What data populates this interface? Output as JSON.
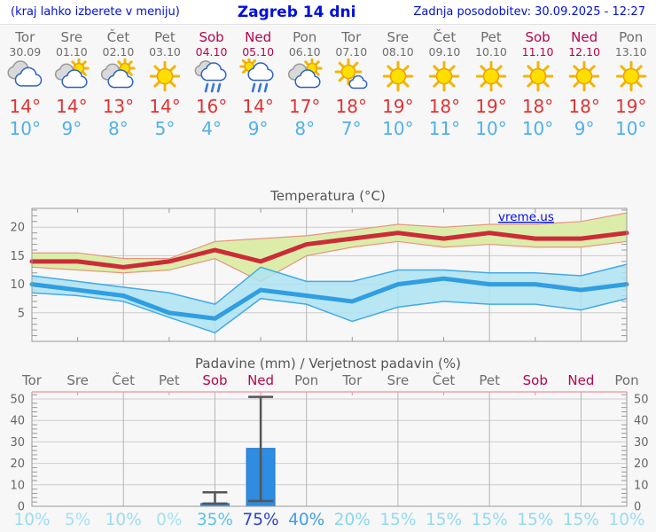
{
  "header": {
    "note": "(kraj lahko izberete v meniju)",
    "title": "Zagreb 14 dni",
    "updated": "Zadnja posodobitev: 30.09.2025 - 12:27"
  },
  "watermark": "vreme.us",
  "days": [
    {
      "name": "Tor",
      "date": "30.09",
      "weekend": false,
      "icon": "cloudy",
      "tmax_label": "14°",
      "tmin_label": "10°",
      "pop_label": "10%",
      "pop_color": "#9bdcf2"
    },
    {
      "name": "Sre",
      "date": "01.10",
      "weekend": false,
      "icon": "partly-sunny",
      "tmax_label": "14°",
      "tmin_label": "9°",
      "pop_label": "5%",
      "pop_color": "#a5e0f4"
    },
    {
      "name": "Čet",
      "date": "02.10",
      "weekend": false,
      "icon": "partly-sunny",
      "tmax_label": "13°",
      "tmin_label": "8°",
      "pop_label": "10%",
      "pop_color": "#9bdcf2"
    },
    {
      "name": "Pet",
      "date": "03.10",
      "weekend": false,
      "icon": "sunny",
      "tmax_label": "14°",
      "tmin_label": "5°",
      "pop_label": "0%",
      "pop_color": "#a5e0f4"
    },
    {
      "name": "Sob",
      "date": "04.10",
      "weekend": true,
      "icon": "rain",
      "tmax_label": "16°",
      "tmin_label": "4°",
      "pop_label": "35%",
      "pop_color": "#5ac2ec"
    },
    {
      "name": "Ned",
      "date": "05.10",
      "weekend": true,
      "icon": "sun-rain",
      "tmax_label": "14°",
      "tmin_label": "9°",
      "pop_label": "75%",
      "pop_color": "#2a44c4"
    },
    {
      "name": "Pon",
      "date": "06.10",
      "weekend": false,
      "icon": "partly-sunny",
      "tmax_label": "17°",
      "tmin_label": "8°",
      "pop_label": "40%",
      "pop_color": "#3f9ee6"
    },
    {
      "name": "Tor",
      "date": "07.10",
      "weekend": false,
      "icon": "mostly-sunny",
      "tmax_label": "18°",
      "tmin_label": "7°",
      "pop_label": "20%",
      "pop_color": "#86d7f0"
    },
    {
      "name": "Sre",
      "date": "08.10",
      "weekend": false,
      "icon": "sunny",
      "tmax_label": "19°",
      "tmin_label": "10°",
      "pop_label": "15%",
      "pop_color": "#92daf1"
    },
    {
      "name": "Čet",
      "date": "09.10",
      "weekend": false,
      "icon": "sunny",
      "tmax_label": "18°",
      "tmin_label": "11°",
      "pop_label": "15%",
      "pop_color": "#92daf1"
    },
    {
      "name": "Pet",
      "date": "10.10",
      "weekend": false,
      "icon": "sunny",
      "tmax_label": "19°",
      "tmin_label": "10°",
      "pop_label": "15%",
      "pop_color": "#92daf1"
    },
    {
      "name": "Sob",
      "date": "11.10",
      "weekend": true,
      "icon": "sunny",
      "tmax_label": "18°",
      "tmin_label": "10°",
      "pop_label": "15%",
      "pop_color": "#92daf1"
    },
    {
      "name": "Ned",
      "date": "12.10",
      "weekend": true,
      "icon": "sunny",
      "tmax_label": "18°",
      "tmin_label": "9°",
      "pop_label": "15%",
      "pop_color": "#92daf1"
    },
    {
      "name": "Pon",
      "date": "13.10",
      "weekend": false,
      "icon": "sunny",
      "tmax_label": "19°",
      "tmin_label": "10°",
      "pop_label": "10%",
      "pop_color": "#9bdcf2"
    }
  ],
  "chart_data": [
    {
      "type": "line",
      "title": "Temperatura (°C)",
      "categories": [
        "Tor",
        "Sre",
        "Čet",
        "Pet",
        "Sob",
        "Ned",
        "Pon",
        "Tor",
        "Sre",
        "Čet",
        "Pet",
        "Sob",
        "Ned",
        "Pon"
      ],
      "ylim": [
        0,
        23.3
      ],
      "yticks": [
        5,
        10,
        15,
        20
      ],
      "grid": "on",
      "series": [
        {
          "name": "max-temp",
          "color": "#cc2b38",
          "values": [
            14,
            14,
            13,
            14,
            16,
            14,
            17,
            18,
            19,
            18,
            19,
            18,
            18,
            19
          ]
        },
        {
          "name": "max-range-upper",
          "color": "#e8947e",
          "values": [
            15.5,
            15.5,
            14.5,
            14.5,
            17.5,
            18,
            18.5,
            19.5,
            20.5,
            20,
            20.5,
            20.5,
            21,
            22.5
          ]
        },
        {
          "name": "max-range-lower",
          "color": "#e8947e",
          "values": [
            13,
            12.5,
            12,
            12.5,
            14.5,
            10.5,
            15,
            16.5,
            17.5,
            16.5,
            17,
            16.5,
            16.5,
            17.5
          ]
        },
        {
          "name": "min-temp",
          "color": "#2f9ee2",
          "values": [
            10,
            9,
            8,
            5,
            4,
            9,
            8,
            7,
            10,
            11,
            10,
            10,
            9,
            10
          ]
        },
        {
          "name": "min-range-upper",
          "color": "#41aae8",
          "values": [
            11.5,
            10.5,
            9.5,
            8.5,
            6.5,
            13,
            10.5,
            10.5,
            12.5,
            12.5,
            12,
            12,
            11.5,
            13.5
          ]
        },
        {
          "name": "min-range-lower",
          "color": "#41aae8",
          "values": [
            8.5,
            8,
            7,
            4.2,
            1.5,
            7.5,
            6.5,
            3.5,
            6,
            7,
            6.5,
            6.5,
            5.5,
            7.5
          ]
        }
      ],
      "band_fills": {
        "max": "#dcedaa",
        "min": "#ade3f2"
      }
    },
    {
      "type": "bar",
      "title": "Padavine (mm) / Verjetnost padavin (%)",
      "categories": [
        "Tor",
        "Sre",
        "Čet",
        "Pet",
        "Sob",
        "Ned",
        "Pon",
        "Tor",
        "Sre",
        "Čet",
        "Pet",
        "Sob",
        "Ned",
        "Pon"
      ],
      "ylim": [
        0,
        53.3
      ],
      "yticks": [
        0,
        10,
        20,
        30,
        40,
        50
      ],
      "grid": "on",
      "precip_mm": [
        0,
        0,
        0,
        0,
        1.3,
        27,
        0,
        0,
        0,
        0,
        0,
        0,
        0,
        0
      ],
      "whisker_low": [
        null,
        null,
        null,
        null,
        1.3,
        2.5,
        null,
        null,
        null,
        null,
        null,
        null,
        null,
        null
      ],
      "whisker_high": [
        null,
        null,
        null,
        null,
        6.5,
        51,
        null,
        null,
        null,
        null,
        null,
        null,
        null,
        null
      ],
      "probability_pct": [
        10,
        5,
        10,
        0,
        35,
        75,
        40,
        20,
        15,
        15,
        15,
        15,
        15,
        10
      ]
    }
  ],
  "colors": {
    "header_blue": "#0010dd",
    "weekday_text": "#6d6d6d",
    "weekend_text": "#b3074e",
    "tmax_text": "#dd3434",
    "tmin_text": "#4fb0ea",
    "axis_frame": "#999999",
    "gridline": "#cccccc",
    "v_gridline": "#b5b5b5",
    "axis_label": "#666666",
    "precip_top_frame": "#ef8fa0",
    "precip_bar": "#2e8ce2",
    "precip_bar_edge": "#2277cc",
    "whisker": "#555555",
    "title_gray": "#555555"
  }
}
